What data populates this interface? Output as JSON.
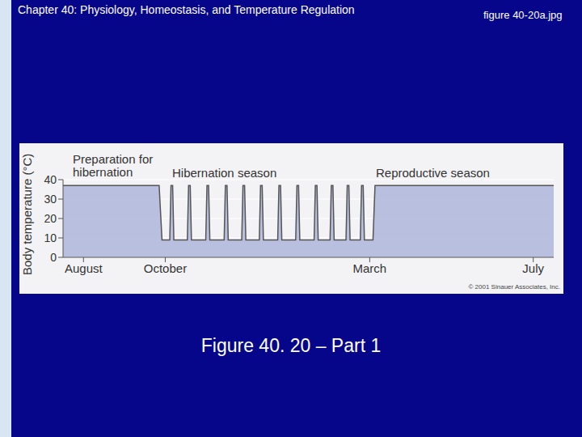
{
  "slide": {
    "header": "Chapter 40: Physiology, Homeostasis, and Temperature Regulation",
    "filename": "figure 40-20a.jpg",
    "caption": "Figure 40. 20 – Part 1"
  },
  "chart_data": {
    "type": "area",
    "ylabel": "Body temperature (°C)",
    "x": [
      -0.5,
      1.85,
      1.92,
      2.11,
      2.14,
      2.18,
      2.21,
      2.54,
      2.57,
      2.61,
      2.64,
      2.99,
      3.02,
      3.06,
      3.09,
      3.44,
      3.47,
      3.51,
      3.54,
      3.87,
      3.9,
      3.94,
      3.97,
      4.3,
      4.33,
      4.37,
      4.4,
      4.75,
      4.78,
      4.82,
      4.85,
      5.19,
      5.22,
      5.26,
      5.29,
      5.64,
      5.67,
      5.71,
      5.74,
      6.03,
      6.06,
      6.1,
      6.13,
      6.42,
      6.45,
      6.49,
      6.52,
      6.77,
      6.8,
      6.84,
      6.87,
      7.08,
      7.13,
      11.5
    ],
    "values": [
      37,
      37,
      9,
      9,
      37,
      37,
      9,
      9,
      37,
      37,
      9,
      9,
      37,
      37,
      9,
      9,
      37,
      37,
      9,
      9,
      37,
      37,
      9,
      9,
      37,
      37,
      9,
      9,
      37,
      37,
      9,
      9,
      37,
      37,
      9,
      9,
      37,
      37,
      9,
      9,
      37,
      37,
      9,
      9,
      37,
      37,
      9,
      9,
      37,
      37,
      9,
      9,
      37,
      37
    ],
    "color": "#b3b9dc",
    "xlim": [
      -0.5,
      11.5
    ],
    "xticks": [
      {
        "value": 0,
        "label": "August"
      },
      {
        "value": 2,
        "label": "October"
      },
      {
        "value": 7,
        "label": "March"
      },
      {
        "value": 11,
        "label": "July"
      }
    ],
    "ylim": [
      0,
      40
    ],
    "yticks": [
      0,
      10,
      20,
      30,
      40
    ],
    "grid": true,
    "annotations": [
      "Preparation for hibernation",
      "Hibernation season",
      "Reproductive season"
    ],
    "source": "© 2001 Sinauer Associates, Inc."
  }
}
